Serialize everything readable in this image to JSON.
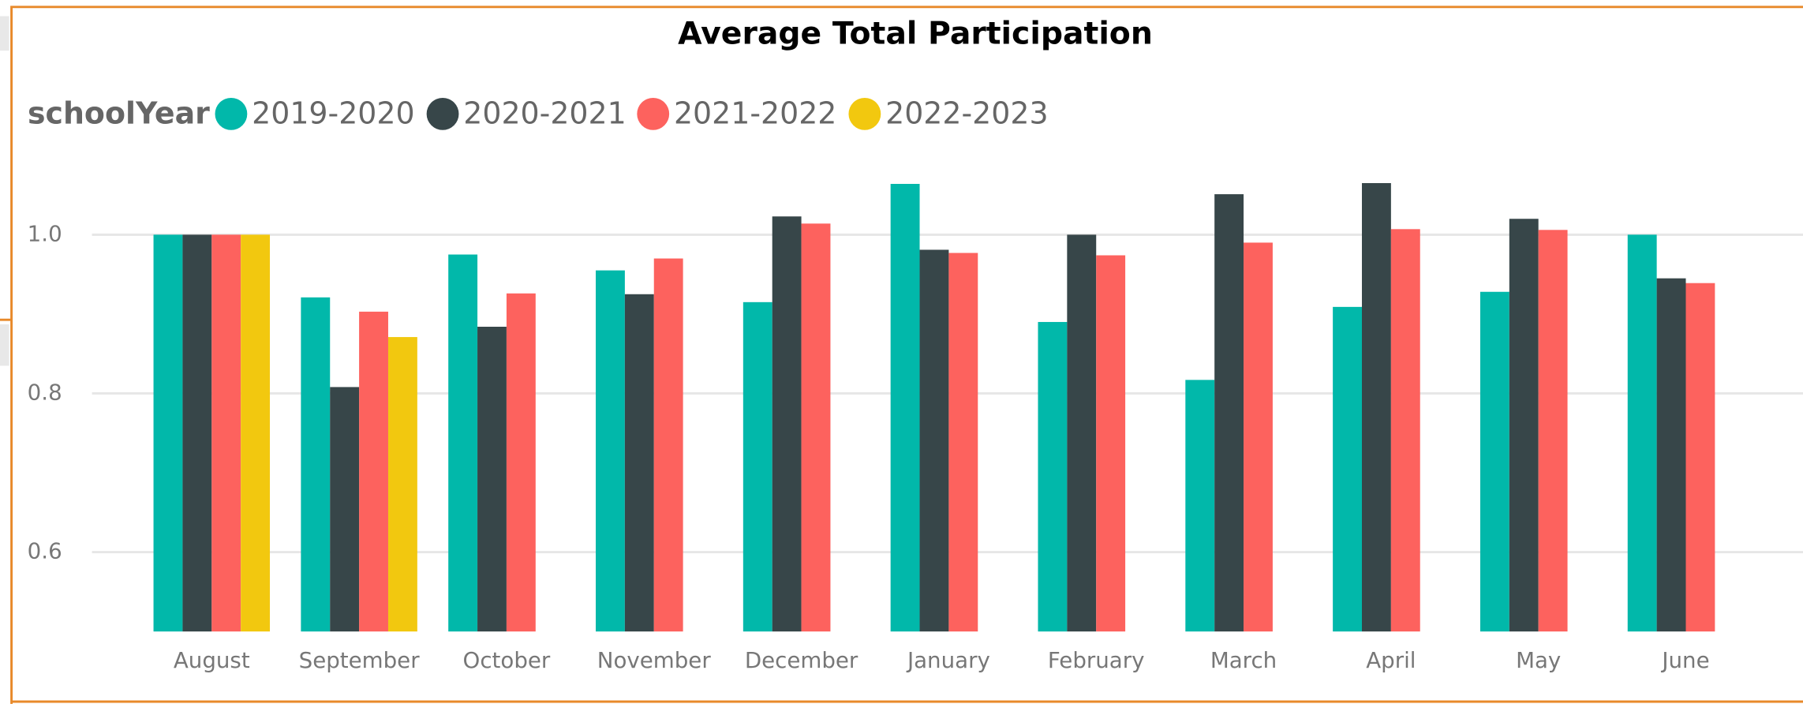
{
  "chart_data": {
    "type": "bar",
    "title": "Average Total Participation",
    "legend_title": "schoolYear",
    "categories": [
      "August",
      "September",
      "October",
      "November",
      "December",
      "January",
      "February",
      "March",
      "April",
      "May",
      "June"
    ],
    "series": [
      {
        "name": "2019-2020",
        "color": "#01b8aa",
        "values": [
          1.0,
          0.921,
          0.975,
          0.955,
          0.915,
          1.064,
          0.89,
          0.817,
          0.909,
          0.928,
          1.0
        ]
      },
      {
        "name": "2020-2021",
        "color": "#374649",
        "values": [
          1.0,
          0.808,
          0.884,
          0.925,
          1.023,
          0.981,
          1.0,
          1.051,
          1.065,
          1.02,
          0.945
        ]
      },
      {
        "name": "2021-2022",
        "color": "#fd625e",
        "values": [
          1.0,
          0.903,
          0.926,
          0.97,
          1.014,
          0.977,
          0.974,
          0.99,
          1.007,
          1.006,
          0.939
        ]
      },
      {
        "name": "2022-2023",
        "color": "#f2c80f",
        "values": [
          1.0,
          0.871,
          null,
          null,
          null,
          null,
          null,
          null,
          null,
          null,
          null
        ]
      }
    ],
    "ylim": [
      0.5,
      1.1
    ],
    "yticks": [
      0.6,
      0.8,
      {
        "value": 1,
        "label": "1.0"
      }
    ],
    "grid": true
  }
}
